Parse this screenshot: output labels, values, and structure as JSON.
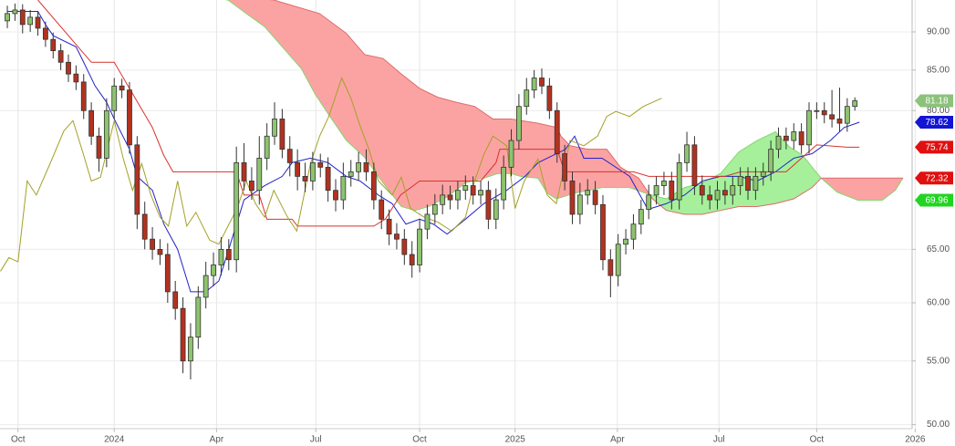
{
  "chart_data": {
    "type": "candlestick",
    "log_scale": true,
    "grid": true,
    "ylim": [
      49.7,
      94.4
    ],
    "yticks": [
      {
        "value": 50,
        "label": "50.00"
      },
      {
        "value": 55,
        "label": "55.00"
      },
      {
        "value": 60,
        "label": "60.00"
      },
      {
        "value": 65,
        "label": "65.00"
      },
      {
        "value": 80,
        "label": "80.00"
      },
      {
        "value": 85,
        "label": "85.00"
      },
      {
        "value": 90,
        "label": "90.00"
      }
    ],
    "xlim": [
      -0.96,
      118.5
    ],
    "xticks": [
      {
        "value": 1.4,
        "label": "Oct"
      },
      {
        "value": 14,
        "label": "2024"
      },
      {
        "value": 27.4,
        "label": "Apr"
      },
      {
        "value": 40.4,
        "label": "Jul"
      },
      {
        "value": 54,
        "label": "Oct"
      },
      {
        "value": 66.5,
        "label": "2025"
      },
      {
        "value": 79.9,
        "label": "Apr"
      },
      {
        "value": 93.2,
        "label": "Jul"
      },
      {
        "value": 106,
        "label": "Oct"
      },
      {
        "value": 118.9,
        "label": "2026"
      }
    ],
    "candles": {
      "up_color": "#8dc46e",
      "down_color": "#b3321f",
      "open": [
        91.5,
        92.5,
        93.0,
        91.0,
        92.0,
        90.5,
        89.0,
        87.5,
        86.0,
        84.5,
        83.5,
        80.0,
        77.0,
        74.5,
        80.0,
        83.0,
        82.5,
        76.0,
        68.5,
        66.0,
        65.0,
        64.5,
        61.0,
        59.5,
        55.0,
        57.0,
        60.5,
        62.5,
        63.5,
        65.0,
        64.0,
        74.0,
        72.0,
        71.0,
        74.5,
        77.0,
        79.0,
        75.5,
        74.0,
        72.5,
        72.0,
        74.0,
        73.5,
        71.0,
        70.0,
        72.5,
        73.0,
        74.0,
        73.0,
        70.0,
        68.0,
        66.5,
        66.0,
        64.5,
        63.5,
        67.0,
        68.5,
        69.5,
        70.5,
        70.0,
        71.0,
        71.5,
        70.5,
        71.0,
        68.0,
        70.0,
        73.5,
        76.5,
        80.5,
        82.5,
        84.0,
        83.0,
        80.0,
        75.0,
        72.0,
        68.5,
        70.5,
        71.0,
        69.5,
        64.0,
        62.5,
        65.5,
        66.0,
        67.5,
        69.0,
        70.5,
        71.5,
        72.0,
        70.0,
        74.0,
        76.0,
        71.5,
        70.5,
        70.0,
        71.0,
        70.5,
        71.5,
        72.5,
        71.0,
        72.5,
        73.0,
        75.5,
        77.0,
        76.5,
        77.5,
        76.0,
        80.0,
        80.0,
        79.5,
        79.0,
        78.5,
        80.5
      ],
      "high": [
        93.6,
        93.9,
        93.8,
        93.0,
        92.8,
        91.4,
        89.9,
        88.4,
        87.0,
        85.6,
        84.5,
        81.0,
        78.0,
        81.5,
        84.0,
        83.9,
        83.5,
        77.0,
        69.8,
        67.2,
        66.0,
        65.6,
        62.0,
        60.5,
        58.2,
        61.5,
        63.8,
        64.7,
        66.2,
        66.0,
        75.8,
        76.2,
        73.5,
        77.0,
        78.5,
        81.0,
        80.2,
        77.0,
        75.5,
        74.0,
        75.2,
        75.0,
        74.6,
        72.2,
        74.0,
        74.3,
        75.2,
        75.5,
        74.0,
        71.0,
        69.0,
        67.6,
        67.0,
        65.8,
        68.0,
        69.5,
        70.6,
        71.6,
        71.5,
        72.0,
        72.6,
        72.5,
        72.0,
        72.0,
        71.2,
        74.8,
        77.8,
        82.0,
        84.0,
        85.0,
        85.2,
        84.0,
        81.0,
        76.0,
        73.0,
        71.8,
        72.2,
        72.0,
        70.5,
        65.0,
        66.5,
        67.0,
        68.5,
        70.0,
        71.6,
        72.5,
        73.0,
        73.0,
        75.0,
        77.5,
        77.0,
        72.6,
        71.5,
        72.0,
        72.0,
        72.5,
        73.5,
        73.5,
        73.5,
        74.0,
        76.5,
        78.0,
        78.0,
        78.5,
        78.5,
        81.0,
        81.0,
        81.0,
        82.5,
        82.8,
        81.5,
        81.6
      ],
      "low": [
        90.5,
        91.5,
        89.8,
        90.0,
        89.5,
        88.0,
        86.5,
        85.0,
        83.5,
        82.5,
        79.0,
        76.0,
        73.0,
        73.5,
        79.0,
        81.5,
        75.0,
        67.0,
        65.0,
        64.0,
        63.5,
        60.0,
        58.5,
        54.0,
        53.5,
        56.0,
        59.5,
        61.5,
        62.5,
        63.0,
        62.8,
        71.0,
        70.0,
        69.5,
        73.2,
        76.0,
        74.5,
        72.5,
        71.0,
        70.8,
        71.0,
        72.4,
        69.8,
        68.8,
        69.0,
        71.4,
        72.0,
        72.0,
        69.0,
        67.0,
        65.4,
        65.0,
        63.5,
        62.3,
        62.8,
        66.0,
        67.5,
        68.5,
        69.0,
        69.0,
        70.0,
        69.5,
        69.5,
        67.0,
        67.0,
        69.0,
        72.5,
        75.5,
        79.5,
        81.5,
        82.0,
        79.0,
        74.0,
        71.0,
        67.5,
        67.5,
        69.5,
        68.5,
        63.0,
        60.5,
        61.5,
        64.5,
        65.0,
        66.5,
        68.0,
        69.5,
        70.5,
        69.0,
        69.0,
        73.0,
        70.5,
        69.5,
        69.0,
        69.0,
        69.5,
        69.5,
        70.5,
        70.0,
        70.0,
        71.5,
        72.0,
        74.5,
        75.5,
        75.5,
        75.0,
        75.0,
        79.0,
        78.5,
        78.0,
        77.5,
        77.5,
        80.0
      ],
      "close": [
        92.5,
        93.0,
        91.0,
        92.0,
        90.5,
        89.0,
        87.5,
        86.0,
        84.5,
        83.5,
        80.0,
        77.0,
        74.5,
        80.0,
        83.0,
        82.5,
        76.0,
        68.5,
        66.0,
        65.0,
        64.5,
        61.0,
        59.5,
        55.0,
        57.0,
        60.5,
        62.5,
        63.5,
        65.0,
        64.0,
        74.0,
        72.0,
        71.0,
        74.5,
        77.0,
        79.0,
        75.5,
        74.0,
        72.5,
        72.0,
        74.0,
        73.5,
        71.0,
        70.0,
        72.5,
        73.0,
        74.0,
        73.0,
        70.0,
        68.0,
        66.5,
        66.0,
        64.5,
        63.5,
        67.0,
        68.5,
        69.5,
        70.5,
        70.0,
        71.0,
        71.5,
        70.5,
        71.0,
        68.0,
        70.0,
        73.5,
        76.5,
        80.5,
        82.5,
        84.0,
        83.0,
        80.0,
        75.0,
        72.0,
        68.5,
        70.5,
        71.0,
        69.5,
        64.0,
        62.5,
        65.5,
        66.0,
        67.5,
        69.0,
        70.5,
        71.5,
        72.0,
        70.0,
        74.0,
        76.0,
        71.5,
        70.5,
        70.0,
        71.0,
        70.5,
        71.5,
        72.5,
        71.0,
        72.5,
        73.0,
        75.5,
        77.0,
        76.5,
        77.5,
        76.0,
        80.0,
        80.0,
        79.5,
        79.0,
        78.5,
        80.5,
        81.18
      ]
    },
    "cloud": {
      "bull_fill": "#a6f09c",
      "bear_fill": "#fba3a3",
      "span_a": {
        "color": "#86d46f",
        "x": [
          21,
          28.9,
          31.3,
          33.7,
          36.1,
          38.5,
          40.3,
          42.1,
          44.4,
          46.8,
          49.2,
          51.6,
          53.4,
          55.2,
          57.6,
          60,
          62.4,
          64.2,
          66,
          67.2,
          69.5,
          70.7,
          71.9,
          74.3,
          77.9,
          81.5,
          83.9,
          86.3,
          88.7,
          91,
          93.4,
          95.8,
          98.2,
          100.6,
          102.4,
          104.2,
          105.4,
          106.6,
          108.7,
          111.4,
          114.6,
          116.3,
          117.3
        ],
        "values": [
          95.5,
          94.4,
          92.5,
          90.7,
          87.9,
          85.2,
          82.0,
          79.5,
          76.5,
          74.6,
          71.8,
          69.3,
          68.9,
          69.3,
          70.3,
          71.8,
          72.3,
          72.8,
          72.8,
          72.5,
          72.3,
          70.7,
          70.1,
          70.7,
          71.3,
          71.3,
          70.6,
          70.1,
          71.3,
          71.8,
          72.8,
          75.2,
          76.5,
          77.5,
          75.8,
          74.8,
          73.5,
          72.3,
          70.8,
          69.96,
          69.96,
          71.0,
          72.3
        ]
      },
      "span_b": {
        "color": "#e06a6a",
        "x": [
          21,
          34.9,
          40.9,
          44.4,
          46.8,
          49.2,
          51.6,
          54,
          56.4,
          58.8,
          61.2,
          63.6,
          66,
          69.5,
          72,
          72.5,
          73.7,
          76,
          78.5,
          80.3,
          82.7,
          84.5,
          86.3,
          88.7,
          91,
          93.4,
          95.8,
          98.2,
          100.6,
          103,
          105.4,
          106.6,
          117.3
        ],
        "values": [
          96.0,
          94.4,
          92.5,
          89.8,
          87.0,
          86.5,
          84.5,
          82.7,
          81.6,
          81.0,
          80.5,
          79.0,
          79.0,
          78.5,
          78.0,
          77.0,
          75.9,
          75.5,
          75.5,
          73.5,
          72.3,
          70.1,
          68.9,
          68.5,
          68.5,
          68.9,
          69.3,
          69.3,
          69.6,
          70.1,
          71.3,
          72.32,
          72.32
        ]
      }
    },
    "lines": [
      {
        "color": "#2222c8",
        "x": [
          0,
          4,
          5,
          6,
          9,
          10,
          11.5,
          13,
          14,
          16,
          17,
          19,
          20.5,
          22.3,
          24,
          26,
          27.7,
          29,
          31,
          33.7,
          36,
          37.3,
          39.7,
          42,
          44.4,
          46.2,
          48.6,
          50.4,
          52.2,
          54,
          55.8,
          57.6,
          60,
          62.4,
          65.4,
          67.8,
          69.5,
          73.1,
          74.3,
          75.5,
          77.9,
          81.5,
          83.9,
          86.3,
          88.7,
          91,
          93.4,
          95.8,
          98.2,
          100.6,
          103,
          105.4,
          107.8,
          109.6,
          111.6
        ],
        "values": [
          92.8,
          92.8,
          91,
          89.5,
          88,
          86,
          83,
          81,
          79,
          75.5,
          72.5,
          71,
          67.5,
          65,
          61,
          61,
          62,
          65,
          70,
          71.5,
          72.5,
          74,
          74.5,
          74,
          72.5,
          72,
          70.5,
          69.6,
          67.5,
          68,
          67.5,
          66.5,
          68,
          69.6,
          71,
          72.5,
          74,
          75.5,
          77,
          74.5,
          74.5,
          72.5,
          69,
          69.6,
          70.5,
          72,
          72.5,
          72.5,
          72,
          73,
          74.5,
          75,
          76.5,
          78,
          78.62
        ]
      },
      {
        "color": "#d8322e",
        "x": [
          4,
          11,
          14,
          16,
          19,
          20.5,
          21.7,
          30,
          31,
          33,
          34,
          37.3,
          38,
          48,
          49.5,
          51.5,
          54,
          62,
          64,
          64.5,
          72,
          73,
          82,
          84,
          94,
          96,
          102,
          104,
          106,
          110,
          111.6
        ],
        "values": [
          94.4,
          86,
          86,
          82.7,
          78,
          74.8,
          73,
          73,
          70.5,
          70.5,
          68,
          68,
          67.3,
          67.3,
          68,
          70.5,
          72,
          72,
          74,
          75.5,
          75.5,
          73,
          73,
          72.5,
          72.5,
          73,
          73,
          74.5,
          76,
          75.74,
          75.74
        ]
      },
      {
        "color": "#a3a126",
        "x": [
          -0.9,
          0.2,
          1.4,
          2.6,
          3.8,
          5.6,
          7.4,
          8.6,
          9.8,
          11,
          12.2,
          14,
          15.2,
          16.4,
          17.6,
          18.8,
          20,
          21.1,
          22.3,
          23.5,
          24.7,
          26.5,
          27.7,
          28.9,
          30.1,
          31.3,
          32.5,
          33.7,
          34.9,
          36.7,
          37.9,
          39.7,
          40.9,
          42.1,
          43.8,
          45,
          46.2,
          47.4,
          48.6,
          50.4,
          51.6,
          52.8,
          54.6,
          56.4,
          58.2,
          60,
          61.2,
          62.4,
          63.6,
          65.4,
          66.5,
          67.7,
          69.5,
          70.7,
          71.9,
          73.7,
          75.5,
          77.3,
          78.5,
          79.7,
          81.5,
          83.3,
          85.7
        ],
        "values": [
          62.9,
          64.2,
          63.8,
          72.0,
          70.5,
          73.9,
          77.6,
          78.8,
          75.4,
          72.0,
          72.4,
          78.8,
          74.4,
          71.0,
          73.9,
          70.5,
          68.2,
          67.3,
          72.0,
          67.3,
          68.7,
          65.9,
          65.5,
          67.3,
          69.1,
          72.0,
          69.6,
          68.2,
          71.0,
          68.2,
          66.8,
          73.9,
          77.0,
          79.3,
          84.0,
          81.5,
          78.2,
          75.4,
          72.0,
          70.5,
          72.4,
          69.1,
          68.2,
          67.7,
          66.8,
          68.2,
          72.0,
          74.9,
          77.0,
          75.9,
          69.1,
          72.0,
          74.4,
          70.5,
          69.6,
          76.5,
          75.9,
          77.0,
          79.3,
          79.9,
          79.3,
          80.5,
          81.5
        ]
      }
    ],
    "last_values": [
      {
        "value": 81.18,
        "color": "#8cc27a"
      },
      {
        "value": 78.62,
        "color": "#1414d4"
      },
      {
        "value": 75.74,
        "color": "#e01010"
      },
      {
        "value": 72.32,
        "color": "#e01010"
      },
      {
        "value": 69.96,
        "color": "#22d422"
      }
    ]
  }
}
